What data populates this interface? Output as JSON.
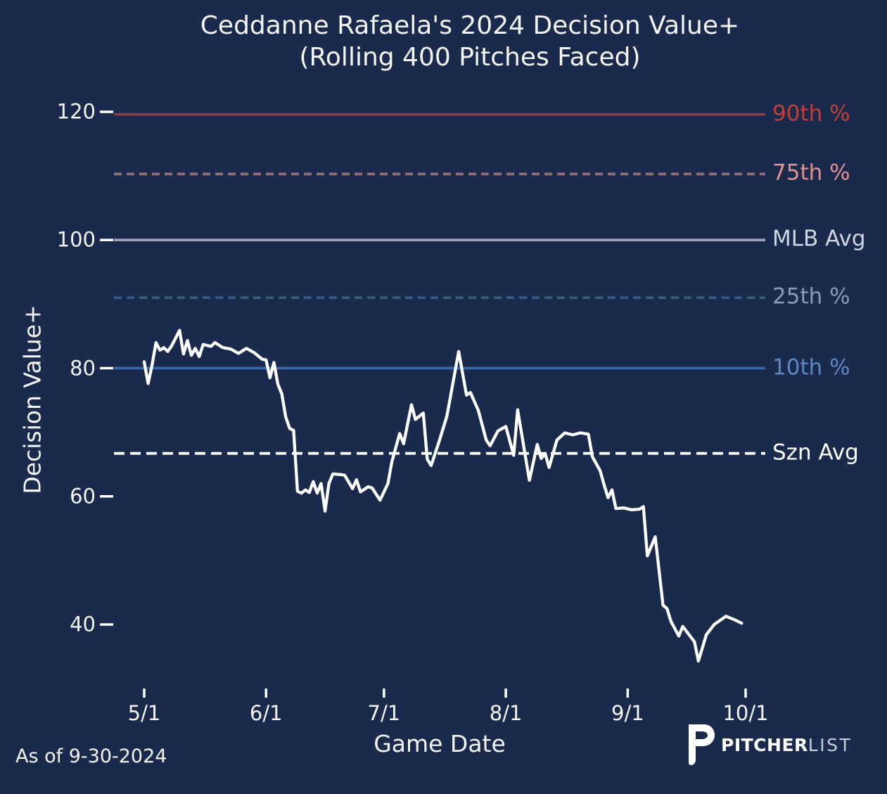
{
  "title": {
    "line1": "Ceddanne Rafaela's 2024 Decision Value+",
    "line2": "(Rolling 400 Pitches Faced)"
  },
  "footer": {
    "as_of": "As of 9-30-2024",
    "brand_bold": "PITCHER",
    "brand_light": "LIST"
  },
  "style": {
    "background": "#192a4c",
    "text_color": "#f5f5f5",
    "tick_color": "#ffffff"
  },
  "chart_data": {
    "type": "line",
    "title": "Ceddanne Rafaela's 2024 Decision Value+",
    "subtitle": "(Rolling 400 Pitches Faced)",
    "xlabel": "Game Date",
    "ylabel": "Decision Value+",
    "x_ticks": [
      "5/1",
      "6/1",
      "7/1",
      "8/1",
      "9/1",
      "10/1"
    ],
    "y_ticks": [
      120,
      100,
      80,
      60,
      40
    ],
    "ylim": [
      30,
      124
    ],
    "grid": false,
    "legend_position": "right-edge-labels",
    "reference_lines": [
      {
        "label": "90th %",
        "value": 119.6,
        "dash": "solid",
        "color": "#8c3a45",
        "label_color": "#c13e3b"
      },
      {
        "label": "75th %",
        "value": 110.3,
        "dash": "dashed",
        "color": "#8e707d",
        "label_color": "#de9292"
      },
      {
        "label": "MLB Avg",
        "value": 100.0,
        "dash": "solid",
        "color": "#9aa5ba",
        "label_color": "#d2d6de"
      },
      {
        "label": "25th %",
        "value": 91.0,
        "dash": "dashed",
        "color": "#40577d",
        "label_color": "#8999b7"
      },
      {
        "label": "10th %",
        "value": 80.0,
        "dash": "solid",
        "color": "#3a66aa",
        "label_color": "#5e87c1"
      },
      {
        "label": "Szn Avg",
        "value": 66.7,
        "dash": "long",
        "color": "#ffffff",
        "label_color": "#ffffff"
      }
    ],
    "series": [
      {
        "name": "Rolling 400-pitch Decision Value+",
        "color": "#ffffff",
        "points": [
          [
            "5/1",
            81.0
          ],
          [
            "5/2",
            77.6
          ],
          [
            "5/3",
            80.5
          ],
          [
            "5/4",
            84.0
          ],
          [
            "5/5",
            82.8
          ],
          [
            "5/6",
            83.2
          ],
          [
            "5/7",
            82.6
          ],
          [
            "5/8",
            83.5
          ],
          [
            "5/10",
            85.9
          ],
          [
            "5/11",
            82.2
          ],
          [
            "5/12",
            84.3
          ],
          [
            "5/13",
            82.0
          ],
          [
            "5/14",
            83.1
          ],
          [
            "5/15",
            81.8
          ],
          [
            "5/16",
            83.7
          ],
          [
            "5/18",
            83.4
          ],
          [
            "5/19",
            84.0
          ],
          [
            "5/21",
            83.2
          ],
          [
            "5/23",
            83.0
          ],
          [
            "5/25",
            82.3
          ],
          [
            "5/27",
            83.1
          ],
          [
            "5/29",
            82.4
          ],
          [
            "5/31",
            81.4
          ],
          [
            "6/1",
            81.3
          ],
          [
            "6/2",
            78.5
          ],
          [
            "6/3",
            80.9
          ],
          [
            "6/4",
            77.5
          ],
          [
            "6/5",
            76.0
          ],
          [
            "6/6",
            72.4
          ],
          [
            "6/7",
            70.6
          ],
          [
            "6/8",
            70.3
          ],
          [
            "6/9",
            60.8
          ],
          [
            "6/10",
            60.5
          ],
          [
            "6/11",
            61.0
          ],
          [
            "6/12",
            60.6
          ],
          [
            "6/13",
            62.3
          ],
          [
            "6/14",
            60.5
          ],
          [
            "6/15",
            62.0
          ],
          [
            "6/16",
            57.7
          ],
          [
            "6/17",
            62.0
          ],
          [
            "6/18",
            63.5
          ],
          [
            "6/20",
            63.4
          ],
          [
            "6/21",
            63.3
          ],
          [
            "6/23",
            61.2
          ],
          [
            "6/24",
            62.6
          ],
          [
            "6/25",
            60.7
          ],
          [
            "6/27",
            61.5
          ],
          [
            "6/28",
            61.3
          ],
          [
            "6/30",
            59.4
          ],
          [
            "7/2",
            62.0
          ],
          [
            "7/3",
            65.4
          ],
          [
            "7/5",
            69.8
          ],
          [
            "7/6",
            68.2
          ],
          [
            "7/8",
            74.3
          ],
          [
            "7/9",
            72.0
          ],
          [
            "7/11",
            73.0
          ],
          [
            "7/12",
            65.8
          ],
          [
            "7/13",
            64.8
          ],
          [
            "7/15",
            68.5
          ],
          [
            "7/17",
            72.5
          ],
          [
            "7/20",
            82.6
          ],
          [
            "7/22",
            75.8
          ],
          [
            "7/23",
            76.2
          ],
          [
            "7/25",
            73.4
          ],
          [
            "7/27",
            68.8
          ],
          [
            "7/28",
            67.9
          ],
          [
            "7/30",
            70.2
          ],
          [
            "8/1",
            70.9
          ],
          [
            "8/3",
            66.4
          ],
          [
            "8/4",
            73.5
          ],
          [
            "8/7",
            62.5
          ],
          [
            "8/9",
            68.1
          ],
          [
            "8/10",
            65.9
          ],
          [
            "8/11",
            66.7
          ],
          [
            "8/12",
            64.5
          ],
          [
            "8/14",
            68.8
          ],
          [
            "8/16",
            69.9
          ],
          [
            "8/18",
            69.6
          ],
          [
            "8/20",
            69.9
          ],
          [
            "8/22",
            69.7
          ],
          [
            "8/23",
            66.2
          ],
          [
            "8/25",
            64.0
          ],
          [
            "8/26",
            61.8
          ],
          [
            "8/27",
            59.8
          ],
          [
            "8/28",
            61.0
          ],
          [
            "8/29",
            58.1
          ],
          [
            "8/31",
            58.2
          ],
          [
            "9/2",
            57.9
          ],
          [
            "9/4",
            58.0
          ],
          [
            "9/5",
            58.4
          ],
          [
            "9/6",
            50.7
          ],
          [
            "9/8",
            53.7
          ],
          [
            "9/10",
            43.0
          ],
          [
            "9/11",
            42.5
          ],
          [
            "9/12",
            40.5
          ],
          [
            "9/14",
            38.2
          ],
          [
            "9/15",
            39.7
          ],
          [
            "9/18",
            37.3
          ],
          [
            "9/19",
            34.3
          ],
          [
            "9/21",
            38.4
          ],
          [
            "9/23",
            40.0
          ],
          [
            "9/26",
            41.3
          ],
          [
            "9/28",
            40.8
          ],
          [
            "9/30",
            40.2
          ]
        ]
      }
    ]
  }
}
